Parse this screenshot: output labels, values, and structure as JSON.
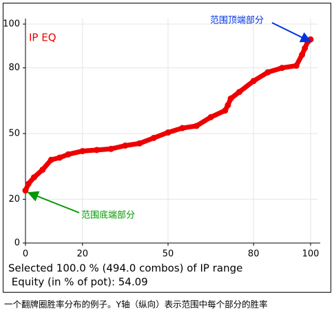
{
  "chart_data": {
    "type": "line",
    "series_label": "IP EQ",
    "x": [
      0,
      1,
      3,
      6,
      9,
      12,
      15,
      20,
      25,
      30,
      35,
      40,
      45,
      50,
      55,
      60,
      65,
      70,
      71,
      72,
      75,
      80,
      85,
      90,
      95,
      97,
      98,
      99,
      100
    ],
    "series": [
      {
        "color": "#ee0000",
        "values": [
          24,
          27,
          30,
          33.5,
          38,
          39,
          40.5,
          42,
          42.5,
          43,
          44.5,
          45.5,
          48,
          50.5,
          52.5,
          53.5,
          57.5,
          60.5,
          63,
          66,
          69,
          74,
          78,
          80,
          81,
          86,
          89,
          92,
          93
        ]
      }
    ],
    "xlim": [
      0,
      100
    ],
    "xticks": [
      0,
      20,
      50,
      80,
      100
    ],
    "ylim": [
      0,
      100
    ],
    "yticks": [
      0,
      20,
      50,
      80,
      100
    ],
    "grid": true,
    "annotations": [
      {
        "text": "范围顶端部分",
        "color": "#0033dd",
        "x": 100,
        "y": 92
      },
      {
        "text": "范围底端部分",
        "color": "#009900",
        "x": 1,
        "y": 23
      }
    ]
  },
  "summary": [
    "Selected 100.0 % (494.0 combos) of IP range",
    " Equity (in % of pot): 54.09"
  ],
  "caption": "一个翻牌圈胜率分布的例子。Y轴（纵向）表示范围中每个部分的胜率"
}
